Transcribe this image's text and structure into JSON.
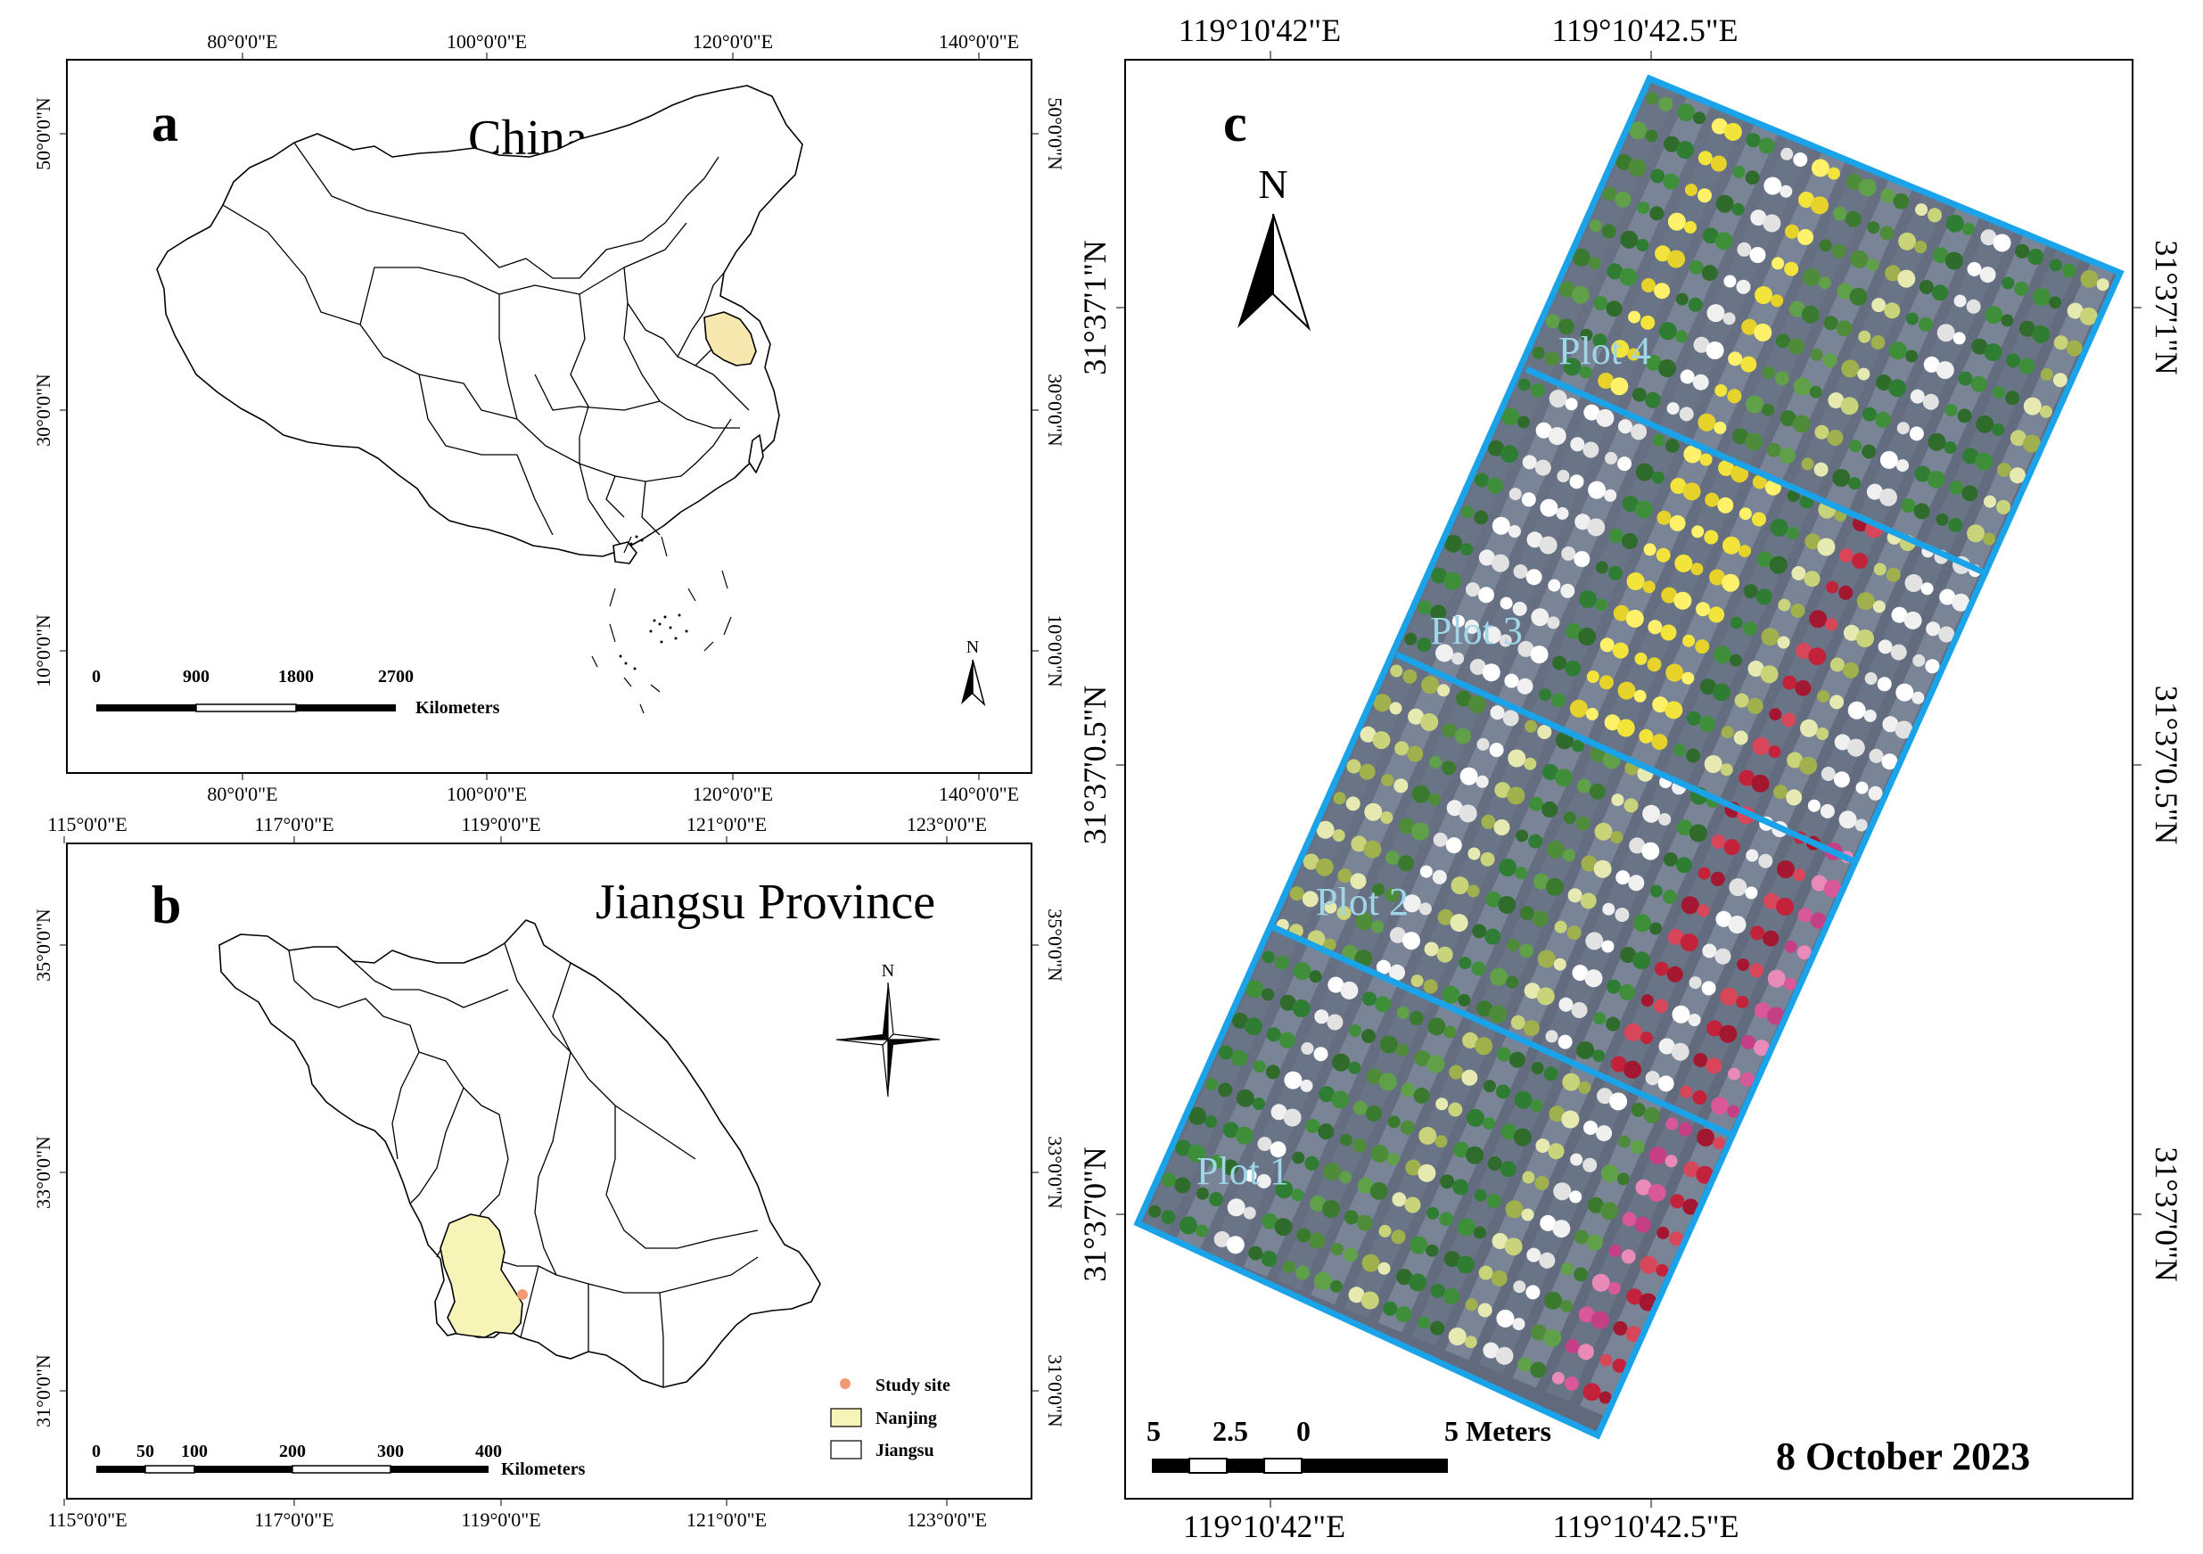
{
  "panel_a": {
    "letter": "a",
    "title": "China",
    "top_lon_labels": [
      "80°0'0\"E",
      "100°0'0\"E",
      "120°0'0\"E",
      "140°0'0\"E"
    ],
    "bottom_lon_labels": [
      "80°0'0\"E",
      "100°0'0\"E",
      "120°0'0\"E",
      "140°0'0\"E"
    ],
    "left_lat_labels": [
      "50°0'0\"N",
      "30°0'0\"N",
      "10°0'0\"N"
    ],
    "right_lat_labels": [
      "50°0'0\"N",
      "30°0'0\"N",
      "10°0'0\"N"
    ],
    "scale_ticks": [
      "0",
      "900",
      "1800",
      "2700"
    ],
    "scale_unit": "Kilometers",
    "north": "N"
  },
  "panel_b": {
    "letter": "b",
    "title": "Jiangsu Province",
    "top_lon_labels": [
      "115°0'0\"E",
      "117°0'0\"E",
      "119°0'0\"E",
      "121°0'0\"E",
      "123°0'0\"E"
    ],
    "bottom_lon_labels": [
      "115°0'0\"E",
      "117°0'0\"E",
      "119°0'0\"E",
      "121°0'0\"E",
      "123°0'0\"E"
    ],
    "left_lat_labels": [
      "35°0'0\"N",
      "33°0'0\"N",
      "31°0'0\"N"
    ],
    "right_lat_labels": [
      "35°0'0\"N",
      "33°0'0\"N",
      "31°0'0\"N"
    ],
    "scale_ticks": [
      "0",
      "50",
      "100",
      "200",
      "300",
      "400"
    ],
    "scale_unit": "Kilometers",
    "north": "N",
    "legend": {
      "study_site": "Study site",
      "nanjing": "Nanjing",
      "jiangsu": "Jiangsu"
    }
  },
  "panel_c": {
    "letter": "c",
    "top_lon_labels": [
      "119°10'42\"E",
      "119°10'42.5\"E"
    ],
    "bottom_lon_labels": [
      "119°10'42\"E",
      "119°10'42.5\"E"
    ],
    "left_lat_labels": [
      "31°37'1\"N",
      "31°37'0.5\"N",
      "31°37'0\"N"
    ],
    "right_lat_labels": [
      "31°37'1\"N",
      "31°37'0.5\"N",
      "31°37'0\"N"
    ],
    "plots": [
      "Plot 1",
      "Plot 2",
      "Plot 3",
      "Plot 4"
    ],
    "scale_ticks": [
      "5",
      "2.5",
      "0",
      "5 Meters"
    ],
    "date": "8 October 2023",
    "north": "N"
  },
  "colors": {
    "frame": "#000000",
    "plot_border": "#1aa3e8",
    "plot_label": "#9fd6e8",
    "jiangsu_fill": "#f7e8b0",
    "nanjing_fill": "#f7f4b8",
    "study_site": "#f29a74"
  }
}
